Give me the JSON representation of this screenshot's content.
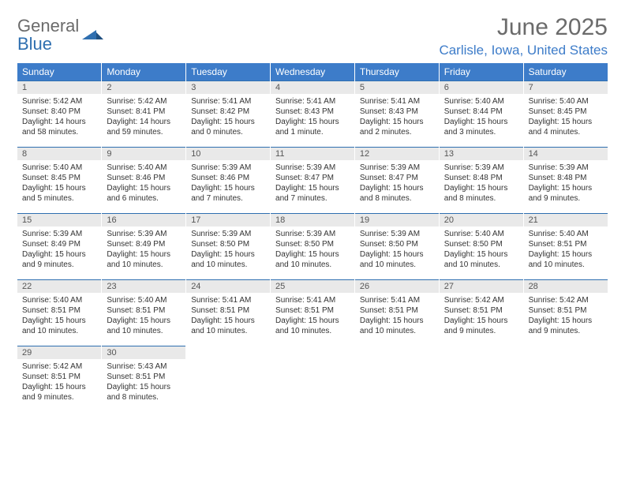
{
  "brand": {
    "part1": "General",
    "part2": "Blue"
  },
  "title": "June 2025",
  "location": "Carlisle, Iowa, United States",
  "colors": {
    "header_bg": "#3d7cc9",
    "header_text": "#ffffff",
    "rule": "#2f6fb0",
    "daynum_bg": "#e9e9e9",
    "logo_gray": "#6b6b6b",
    "logo_blue": "#2f6fb0",
    "body_text": "#333333",
    "location_text": "#3d7cc9",
    "page_bg": "#ffffff"
  },
  "weekdays": [
    "Sunday",
    "Monday",
    "Tuesday",
    "Wednesday",
    "Thursday",
    "Friday",
    "Saturday"
  ],
  "weeks": [
    [
      {
        "n": "1",
        "sr": "5:42 AM",
        "ss": "8:40 PM",
        "dl": "14 hours and 58 minutes."
      },
      {
        "n": "2",
        "sr": "5:42 AM",
        "ss": "8:41 PM",
        "dl": "14 hours and 59 minutes."
      },
      {
        "n": "3",
        "sr": "5:41 AM",
        "ss": "8:42 PM",
        "dl": "15 hours and 0 minutes."
      },
      {
        "n": "4",
        "sr": "5:41 AM",
        "ss": "8:43 PM",
        "dl": "15 hours and 1 minute."
      },
      {
        "n": "5",
        "sr": "5:41 AM",
        "ss": "8:43 PM",
        "dl": "15 hours and 2 minutes."
      },
      {
        "n": "6",
        "sr": "5:40 AM",
        "ss": "8:44 PM",
        "dl": "15 hours and 3 minutes."
      },
      {
        "n": "7",
        "sr": "5:40 AM",
        "ss": "8:45 PM",
        "dl": "15 hours and 4 minutes."
      }
    ],
    [
      {
        "n": "8",
        "sr": "5:40 AM",
        "ss": "8:45 PM",
        "dl": "15 hours and 5 minutes."
      },
      {
        "n": "9",
        "sr": "5:40 AM",
        "ss": "8:46 PM",
        "dl": "15 hours and 6 minutes."
      },
      {
        "n": "10",
        "sr": "5:39 AM",
        "ss": "8:46 PM",
        "dl": "15 hours and 7 minutes."
      },
      {
        "n": "11",
        "sr": "5:39 AM",
        "ss": "8:47 PM",
        "dl": "15 hours and 7 minutes."
      },
      {
        "n": "12",
        "sr": "5:39 AM",
        "ss": "8:47 PM",
        "dl": "15 hours and 8 minutes."
      },
      {
        "n": "13",
        "sr": "5:39 AM",
        "ss": "8:48 PM",
        "dl": "15 hours and 8 minutes."
      },
      {
        "n": "14",
        "sr": "5:39 AM",
        "ss": "8:48 PM",
        "dl": "15 hours and 9 minutes."
      }
    ],
    [
      {
        "n": "15",
        "sr": "5:39 AM",
        "ss": "8:49 PM",
        "dl": "15 hours and 9 minutes."
      },
      {
        "n": "16",
        "sr": "5:39 AM",
        "ss": "8:49 PM",
        "dl": "15 hours and 10 minutes."
      },
      {
        "n": "17",
        "sr": "5:39 AM",
        "ss": "8:50 PM",
        "dl": "15 hours and 10 minutes."
      },
      {
        "n": "18",
        "sr": "5:39 AM",
        "ss": "8:50 PM",
        "dl": "15 hours and 10 minutes."
      },
      {
        "n": "19",
        "sr": "5:39 AM",
        "ss": "8:50 PM",
        "dl": "15 hours and 10 minutes."
      },
      {
        "n": "20",
        "sr": "5:40 AM",
        "ss": "8:50 PM",
        "dl": "15 hours and 10 minutes."
      },
      {
        "n": "21",
        "sr": "5:40 AM",
        "ss": "8:51 PM",
        "dl": "15 hours and 10 minutes."
      }
    ],
    [
      {
        "n": "22",
        "sr": "5:40 AM",
        "ss": "8:51 PM",
        "dl": "15 hours and 10 minutes."
      },
      {
        "n": "23",
        "sr": "5:40 AM",
        "ss": "8:51 PM",
        "dl": "15 hours and 10 minutes."
      },
      {
        "n": "24",
        "sr": "5:41 AM",
        "ss": "8:51 PM",
        "dl": "15 hours and 10 minutes."
      },
      {
        "n": "25",
        "sr": "5:41 AM",
        "ss": "8:51 PM",
        "dl": "15 hours and 10 minutes."
      },
      {
        "n": "26",
        "sr": "5:41 AM",
        "ss": "8:51 PM",
        "dl": "15 hours and 10 minutes."
      },
      {
        "n": "27",
        "sr": "5:42 AM",
        "ss": "8:51 PM",
        "dl": "15 hours and 9 minutes."
      },
      {
        "n": "28",
        "sr": "5:42 AM",
        "ss": "8:51 PM",
        "dl": "15 hours and 9 minutes."
      }
    ],
    [
      {
        "n": "29",
        "sr": "5:42 AM",
        "ss": "8:51 PM",
        "dl": "15 hours and 9 minutes."
      },
      {
        "n": "30",
        "sr": "5:43 AM",
        "ss": "8:51 PM",
        "dl": "15 hours and 8 minutes."
      },
      null,
      null,
      null,
      null,
      null
    ]
  ],
  "labels": {
    "sunrise": "Sunrise:",
    "sunset": "Sunset:",
    "daylight": "Daylight:"
  }
}
